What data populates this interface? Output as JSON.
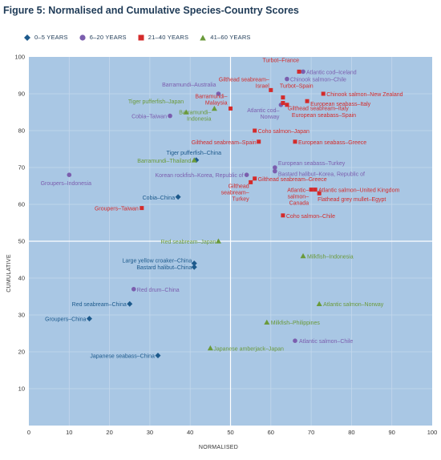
{
  "figure": {
    "title": "Figure 5: Normalised and Cumulative Species-Country Scores"
  },
  "chart_data": {
    "type": "scatter",
    "title": "Figure 5: Normalised and Cumulative Species-Country Scores",
    "xlabel": "NORMALISED",
    "ylabel": "CUMULATIVE",
    "xlim": [
      0,
      100
    ],
    "ylim": [
      0,
      100
    ],
    "x_ticks": [
      0,
      10,
      20,
      30,
      40,
      50,
      60,
      70,
      80,
      90,
      100
    ],
    "y_ticks": [
      10,
      20,
      30,
      40,
      50,
      60,
      70,
      80,
      90,
      100
    ],
    "grid": true,
    "reference_lines": {
      "x": 50,
      "y": 50
    },
    "legend_position": "top-left",
    "series": [
      {
        "name": "0–5 YEARS",
        "marker": "diamond",
        "color": "#1d5a8c",
        "points": [
          {
            "x": 41.5,
            "y": 72,
            "label": "Tiger pufferfish–China"
          },
          {
            "x": 37,
            "y": 62,
            "label": "Cobia–China"
          },
          {
            "x": 41,
            "y": 44,
            "label": "Large yellow croaker–China"
          },
          {
            "x": 41,
            "y": 43,
            "label": "Bastard halibut–China"
          },
          {
            "x": 25,
            "y": 33,
            "label": "Red seabream–China"
          },
          {
            "x": 15,
            "y": 29,
            "label": "Groupers–China"
          },
          {
            "x": 32,
            "y": 19,
            "label": "Japanese seabass–China"
          }
        ]
      },
      {
        "name": "6–20 YEARS",
        "marker": "circle",
        "color": "#7b5eae",
        "points": [
          {
            "x": 68,
            "y": 96,
            "label": "Atlantic cod–Iceland"
          },
          {
            "x": 64,
            "y": 94,
            "label": "Chinook salmon–Chile"
          },
          {
            "x": 47,
            "y": 90,
            "label": "Barramundi–Australia"
          },
          {
            "x": 62.5,
            "y": 87,
            "label": "Atlantic cod–Norway"
          },
          {
            "x": 35,
            "y": 84,
            "label": "Cobia–Taiwan"
          },
          {
            "x": 61,
            "y": 70,
            "label": "European seabass–Turkey"
          },
          {
            "x": 61,
            "y": 69,
            "label": "Bastard halibut–Korea, Republic of"
          },
          {
            "x": 54,
            "y": 68,
            "label": "Korean rockfish–Korea, Republic of"
          },
          {
            "x": 10,
            "y": 68,
            "label": "Groupers–Indonesia"
          },
          {
            "x": 26,
            "y": 37,
            "label": "Red drum–China"
          },
          {
            "x": 66,
            "y": 23,
            "label": "Atlantic salmon–Chile"
          }
        ]
      },
      {
        "name": "21–40 YEARS",
        "marker": "square",
        "color": "#d42b2b",
        "points": [
          {
            "x": 67,
            "y": 96,
            "label": "Turbot–France"
          },
          {
            "x": 60,
            "y": 91,
            "label": "Gilthead seabream–Israel"
          },
          {
            "x": 73,
            "y": 90,
            "label": "Chinook salmon–New Zealand"
          },
          {
            "x": 63,
            "y": 89,
            "label": "Turbot–Spain"
          },
          {
            "x": 69,
            "y": 88,
            "label": "European seabass–Italy"
          },
          {
            "x": 63,
            "y": 87.5,
            "label": "Gilthead seabream–Italy"
          },
          {
            "x": 64,
            "y": 87,
            "label": "European seabass–Spain"
          },
          {
            "x": 50,
            "y": 86,
            "label": "Barramundi–Malaysia"
          },
          {
            "x": 56,
            "y": 80,
            "label": "Coho salmon–Japan"
          },
          {
            "x": 57,
            "y": 77,
            "label": "Gilthead seabream–Spain"
          },
          {
            "x": 66,
            "y": 77,
            "label": "European seabass–Greece"
          },
          {
            "x": 56,
            "y": 67,
            "label": "Gilthead seabream–Greece"
          },
          {
            "x": 55,
            "y": 66,
            "label": "Gilthead seabream–Turkey"
          },
          {
            "x": 70,
            "y": 64,
            "label": "Atlantic salmon–Canada"
          },
          {
            "x": 71,
            "y": 64,
            "label": "Atlantic salmon–United Kingdom"
          },
          {
            "x": 72,
            "y": 63,
            "label": "Flathead grey mullet–Egypt"
          },
          {
            "x": 28,
            "y": 59,
            "label": "Groupers–Taiwan"
          },
          {
            "x": 63,
            "y": 57,
            "label": "Coho salmon–Chile"
          }
        ]
      },
      {
        "name": "41–60 YEARS",
        "marker": "triangle",
        "color": "#6a9a3a",
        "points": [
          {
            "x": 39,
            "y": 85,
            "label": "Tiger pufferfish–Japan"
          },
          {
            "x": 46,
            "y": 86,
            "label": "Barramundi–Indonesia"
          },
          {
            "x": 41,
            "y": 72,
            "label": "Barramundi–Thailand"
          },
          {
            "x": 47,
            "y": 50,
            "label": "Red seabream–Japan"
          },
          {
            "x": 68,
            "y": 46,
            "label": "Milkfish–Indonesia"
          },
          {
            "x": 72,
            "y": 33,
            "label": "Atlantic salmon–Norway"
          },
          {
            "x": 59,
            "y": 28,
            "label": "Milkfish–Philippines"
          },
          {
            "x": 45,
            "y": 21,
            "label": "Japanese amberjack–Japan"
          }
        ]
      }
    ]
  }
}
